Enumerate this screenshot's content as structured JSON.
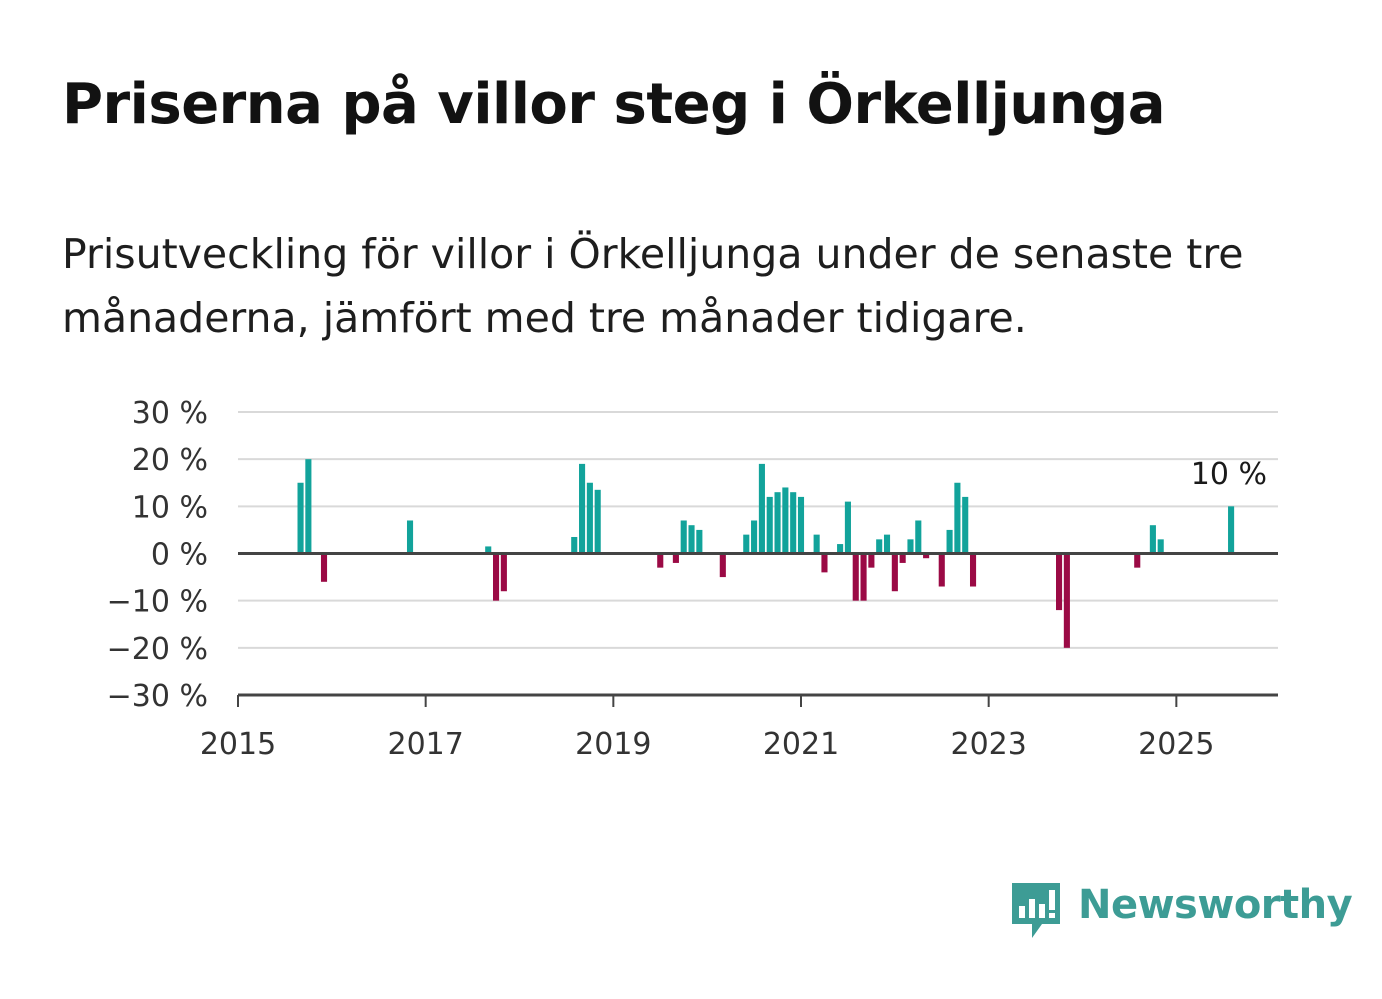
{
  "header": {
    "title": "Priserna på villor steg i Örkelljunga",
    "subtitle": "Prisutveckling för villor i Örkelljunga under de senaste tre månaderna, jämfört med tre månader tidigare."
  },
  "brand": {
    "name": "Newsworthy",
    "icon": "newsworthy-logo-icon",
    "color": "#3d9c95"
  },
  "colors": {
    "positive": "#12a39b",
    "negative": "#9b0a45",
    "grid": "#d9d9d9",
    "axis": "#444444"
  },
  "chart_data": {
    "type": "bar",
    "title": "Priserna på villor steg i Örkelljunga",
    "subtitle": "Prisutveckling för villor i Örkelljunga under de senaste tre månaderna, jämfört med tre månader tidigare.",
    "xlabel": "",
    "ylabel": "",
    "xlim": [
      "2015-01",
      "2026-02"
    ],
    "ylim": [
      -30,
      30
    ],
    "x_ticks": [
      "2015",
      "2017",
      "2019",
      "2021",
      "2023",
      "2025"
    ],
    "y_ticks": [
      "30 %",
      "20 %",
      "10 %",
      "0 %",
      "−10 %",
      "−20 %",
      "−30 %"
    ],
    "y_tick_values": [
      30,
      20,
      10,
      0,
      -10,
      -20,
      -30
    ],
    "grid": true,
    "annotation": {
      "text": "10 %",
      "x": "2025-08"
    },
    "series": [
      {
        "x": [
          "2015-09",
          "2015-10",
          "2015-12",
          "2016-11",
          "2017-09",
          "2017-10",
          "2017-11",
          "2018-08",
          "2018-09",
          "2018-10",
          "2018-11",
          "2019-07",
          "2019-09",
          "2019-10",
          "2019-11",
          "2019-12",
          "2020-03",
          "2020-06",
          "2020-07",
          "2020-08",
          "2020-09",
          "2020-10",
          "2020-11",
          "2020-12",
          "2021-01",
          "2021-03",
          "2021-04",
          "2021-06",
          "2021-07",
          "2021-08",
          "2021-09",
          "2021-10",
          "2021-11",
          "2021-12",
          "2022-01",
          "2022-02",
          "2022-03",
          "2022-04",
          "2022-05",
          "2022-07",
          "2022-08",
          "2022-09",
          "2022-10",
          "2022-11",
          "2023-10",
          "2023-11",
          "2024-08",
          "2024-10",
          "2024-11",
          "2025-08"
        ],
        "values": [
          15,
          20,
          -6,
          7,
          1.5,
          -10,
          -8,
          3.5,
          19,
          15,
          13.5,
          -3,
          -2,
          7,
          6,
          5,
          -5,
          4,
          7,
          19,
          12,
          13,
          14,
          13,
          12,
          4,
          -4,
          2,
          11,
          -10,
          -10,
          -3,
          3,
          4,
          -8,
          -2,
          3,
          7,
          -1,
          -7,
          5,
          15,
          12,
          -7,
          -12,
          -20,
          -3,
          6,
          3,
          10
        ]
      }
    ]
  }
}
